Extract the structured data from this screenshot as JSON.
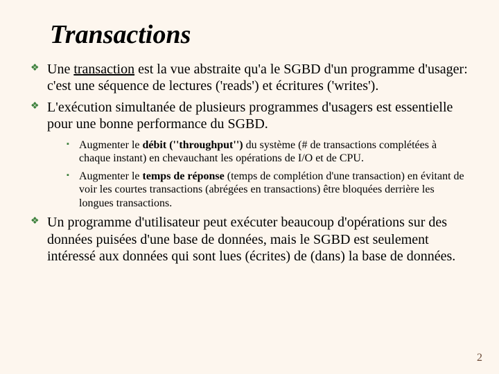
{
  "title": "Transactions",
  "colors": {
    "bullet": "#3a7f3a",
    "background": "#fdf6ee",
    "pagenum": "#6b4a37"
  },
  "points": [
    {
      "pre": "Une ",
      "term": "transaction",
      "post": " est la vue abstraite qu'a le SGBD d'un programme d'usager: c'est une séquence de lectures ('reads') et écritures ('writes')."
    },
    {
      "text": "L'exécution simultanée de plusieurs programmes d'usagers est essentielle pour une bonne performance du SGBD.",
      "sub": [
        {
          "pre": "Augmenter le ",
          "bold": "débit (''throughput'')",
          "post": " du système (# de transactions complétées à chaque instant) en chevauchant les opérations de I/O et de CPU."
        },
        {
          "pre": "Augmenter le ",
          "bold": "temps de réponse",
          "post": " (temps de complétion d'une transaction) en évitant de voir les courtes transactions (abrégées en transactions) être bloquées derrière les longues transactions."
        }
      ]
    },
    {
      "text": "Un programme d'utilisateur peut exécuter beaucoup d'opérations sur des données puisées d'une base de données, mais le SGBD est seulement intéressé aux données qui sont lues (écrites) de (dans) la base de données."
    }
  ],
  "pagenum": "2"
}
